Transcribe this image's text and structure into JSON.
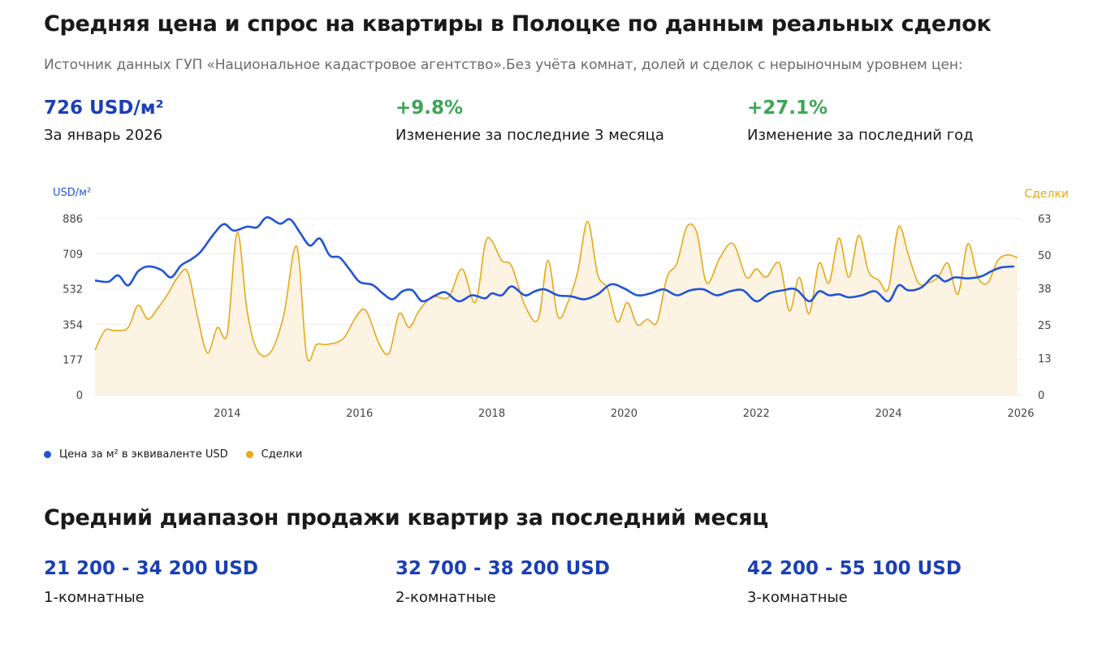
{
  "header": {
    "title": "Средняя цена и спрос на квартиры в Полоцке по данным реальных сделок",
    "source": "Источник данных ГУП «Национальное кадастровое агентство».Без учёта комнат, долей и сделок с нерыночным уровнем цен:"
  },
  "stats": [
    {
      "value": "726 USD/м²",
      "label": "За январь 2026",
      "color": "#1b3fb5"
    },
    {
      "value": "+9.8%",
      "label": "Изменение за последние 3 месяца",
      "color": "#3aa655"
    },
    {
      "value": "+27.1%",
      "label": "Изменение за последний год",
      "color": "#3aa655"
    }
  ],
  "legend": {
    "price": "Цена за м² в эквиваленте USD",
    "deals": "Сделки"
  },
  "chart_data": {
    "type": "line",
    "left_axis_label": "USD/м²",
    "right_axis_label": "Сделки",
    "y_left_ticks": [
      0,
      177,
      354,
      532,
      709,
      886
    ],
    "y_right_ticks": [
      0,
      13,
      25,
      38,
      50,
      63
    ],
    "ylim_left": [
      0,
      886
    ],
    "ylim_right": [
      0,
      63
    ],
    "x_ticks": [
      2014,
      2016,
      2018,
      2020,
      2022,
      2024,
      2026
    ],
    "xlim": [
      2012.0,
      2026.0
    ],
    "colors": {
      "price": "#2155d6",
      "deals": "#e6a817",
      "deals_fill": "#fdf3e3",
      "grid": "#ececec"
    },
    "series": [
      {
        "name": "Цена за м² в эквиваленте USD",
        "axis": "left",
        "x": [
          2012.0,
          2012.2,
          2012.35,
          2012.5,
          2012.65,
          2012.8,
          2013.0,
          2013.15,
          2013.3,
          2013.45,
          2013.6,
          2013.8,
          2013.95,
          2014.1,
          2014.3,
          2014.45,
          2014.6,
          2014.8,
          2014.95,
          2015.1,
          2015.25,
          2015.4,
          2015.55,
          2015.7,
          2015.85,
          2016.0,
          2016.2,
          2016.35,
          2016.5,
          2016.65,
          2016.8,
          2016.95,
          2017.15,
          2017.3,
          2017.5,
          2017.7,
          2017.9,
          2018.0,
          2018.15,
          2018.3,
          2018.5,
          2018.65,
          2018.8,
          2019.0,
          2019.2,
          2019.4,
          2019.6,
          2019.8,
          2020.0,
          2020.2,
          2020.4,
          2020.6,
          2020.8,
          2021.0,
          2021.2,
          2021.4,
          2021.6,
          2021.8,
          2022.0,
          2022.2,
          2022.4,
          2022.6,
          2022.8,
          2022.95,
          2023.1,
          2023.25,
          2023.4,
          2023.6,
          2023.8,
          2024.0,
          2024.15,
          2024.3,
          2024.5,
          2024.7,
          2024.85,
          2025.0,
          2025.2,
          2025.4,
          2025.55,
          2025.7,
          2025.9
        ],
        "values": [
          575,
          568,
          600,
          550,
          620,
          645,
          628,
          590,
          650,
          680,
          720,
          810,
          858,
          825,
          845,
          842,
          892,
          860,
          882,
          815,
          750,
          785,
          700,
          690,
          630,
          568,
          552,
          510,
          480,
          520,
          525,
          470,
          500,
          515,
          470,
          500,
          485,
          510,
          500,
          545,
          500,
          520,
          530,
          500,
          495,
          480,
          505,
          555,
          535,
          500,
          510,
          530,
          500,
          525,
          530,
          500,
          520,
          525,
          470,
          510,
          525,
          530,
          470,
          520,
          500,
          505,
          490,
          500,
          520,
          470,
          550,
          525,
          540,
          600,
          570,
          590,
          585,
          595,
          620,
          640,
          645
        ]
      },
      {
        "name": "Сделки",
        "axis": "right",
        "x": [
          2012.0,
          2012.15,
          2012.3,
          2012.5,
          2012.65,
          2012.8,
          2012.95,
          2013.1,
          2013.25,
          2013.4,
          2013.55,
          2013.7,
          2013.85,
          2014.0,
          2014.15,
          2014.3,
          2014.45,
          2014.65,
          2014.85,
          2015.05,
          2015.2,
          2015.35,
          2015.5,
          2015.75,
          2015.95,
          2016.1,
          2016.3,
          2016.45,
          2016.6,
          2016.75,
          2016.9,
          2017.1,
          2017.35,
          2017.55,
          2017.75,
          2017.9,
          2018.0,
          2018.15,
          2018.3,
          2018.5,
          2018.7,
          2018.85,
          2019.0,
          2019.15,
          2019.3,
          2019.45,
          2019.6,
          2019.75,
          2019.9,
          2020.05,
          2020.2,
          2020.35,
          2020.5,
          2020.65,
          2020.8,
          2020.95,
          2021.1,
          2021.25,
          2021.45,
          2021.65,
          2021.85,
          2022.0,
          2022.15,
          2022.35,
          2022.5,
          2022.65,
          2022.8,
          2022.95,
          2023.1,
          2023.25,
          2023.4,
          2023.55,
          2023.7,
          2023.85,
          2024.0,
          2024.15,
          2024.3,
          2024.45,
          2024.6,
          2024.75,
          2024.9,
          2025.05,
          2025.2,
          2025.35,
          2025.5,
          2025.65,
          2025.8,
          2025.95
        ],
        "values": [
          16,
          23,
          23,
          24,
          32,
          27,
          31,
          36,
          42,
          44,
          28,
          15,
          24,
          22,
          58,
          30,
          16,
          15,
          28,
          53,
          14,
          18,
          18,
          20,
          28,
          30,
          18,
          15,
          29,
          24,
          30,
          35,
          35,
          45,
          33,
          54,
          55,
          48,
          46,
          32,
          27,
          48,
          28,
          33,
          44,
          62,
          43,
          38,
          26,
          33,
          25,
          27,
          26,
          42,
          47,
          60,
          58,
          40,
          49,
          54,
          42,
          45,
          42,
          47,
          30,
          42,
          29,
          47,
          40,
          56,
          42,
          57,
          44,
          41,
          38,
          60,
          50,
          40,
          40,
          42,
          47,
          36,
          54,
          42,
          40,
          48,
          50,
          49
        ]
      }
    ]
  },
  "range_section": {
    "title": "Средний диапазон продажи квартир за последний месяц",
    "items": [
      {
        "value": "21 200 - 34 200 USD",
        "label": "1-комнатные"
      },
      {
        "value": "32 700 - 38 200 USD",
        "label": "2-комнатные"
      },
      {
        "value": "42 200 - 55 100 USD",
        "label": "3-комнатные"
      }
    ]
  }
}
